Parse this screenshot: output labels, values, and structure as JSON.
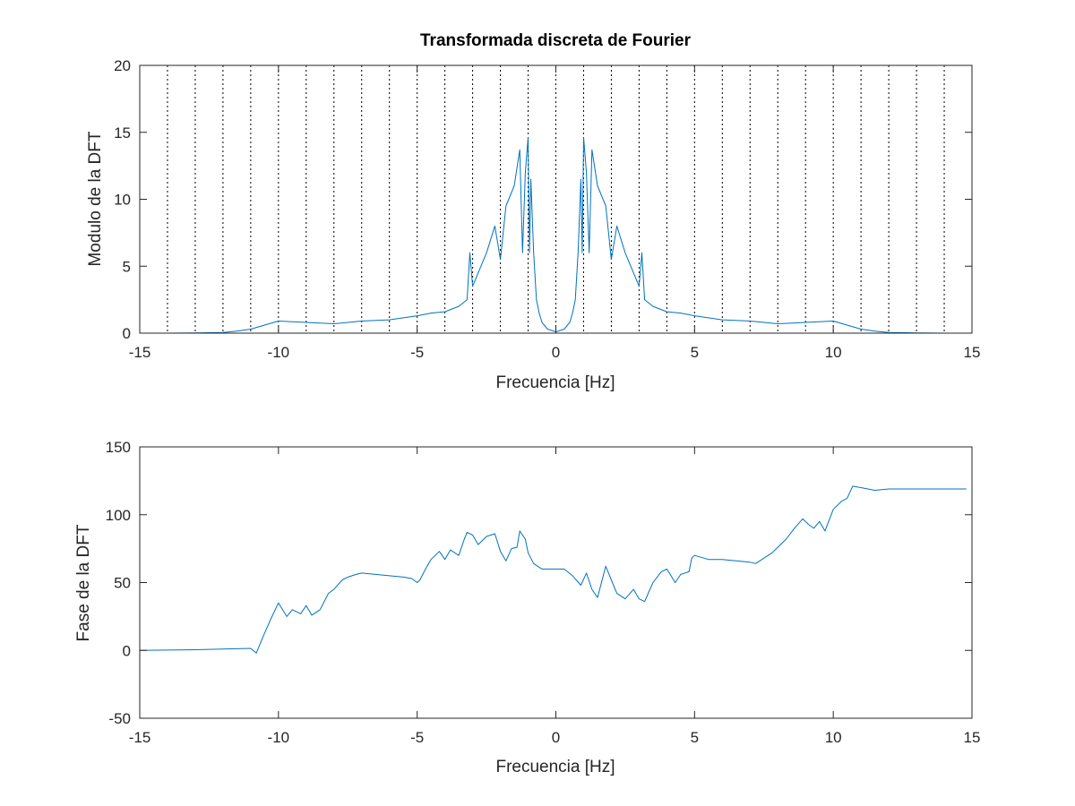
{
  "chart_data": [
    {
      "type": "line",
      "title": "Transformada discreta de Fourier",
      "xlabel": "Frecuencia [Hz]",
      "ylabel": "Modulo de la DFT",
      "xlim": [
        -15,
        15
      ],
      "ylim": [
        0,
        20
      ],
      "xticks": [
        -15,
        -10,
        -5,
        0,
        5,
        10,
        15
      ],
      "yticks": [
        0,
        5,
        10,
        15,
        20
      ],
      "x_gridlines": [
        -14,
        -13,
        -12,
        -11,
        -10,
        -9,
        -8,
        -7,
        -6,
        -5,
        -4,
        -3,
        -2,
        -1,
        0,
        1,
        2,
        3,
        4,
        5,
        6,
        7,
        8,
        9,
        10,
        11,
        12,
        13,
        14
      ],
      "grid_style": "dotted vertical",
      "color": "#0072bd",
      "series": [
        {
          "x": [
            -15,
            -14,
            -13,
            -12,
            -11.5,
            -11,
            -10.5,
            -10,
            -9,
            -8,
            -7,
            -6,
            -5,
            -4.5,
            -4,
            -3.5,
            -3.2,
            -3.1,
            -3.0,
            -2.8,
            -2.5,
            -2.2,
            -2.0,
            -1.8,
            -1.5,
            -1.3,
            -1.2,
            -1.1,
            -1.0,
            -0.95,
            -0.9,
            -0.8,
            -0.7,
            -0.6,
            -0.5,
            -0.3,
            0,
            0.3,
            0.5,
            0.6,
            0.7,
            0.8,
            0.9,
            0.95,
            1.0,
            1.1,
            1.2,
            1.3,
            1.5,
            1.8,
            2.0,
            2.2,
            2.5,
            2.8,
            3.0,
            3.1,
            3.2,
            3.5,
            4,
            4.5,
            5,
            6,
            7,
            8,
            9,
            10,
            10.5,
            11,
            11.5,
            12,
            13,
            14,
            14.8
          ],
          "y": [
            0,
            0,
            0.02,
            0.05,
            0.15,
            0.3,
            0.6,
            0.9,
            0.8,
            0.7,
            0.9,
            1.0,
            1.3,
            1.5,
            1.6,
            2.0,
            2.5,
            6.0,
            3.5,
            4.5,
            6.0,
            8.0,
            5.5,
            9.5,
            11.0,
            13.7,
            6.0,
            12.0,
            14.6,
            6.0,
            11.5,
            6.0,
            2.5,
            1.5,
            0.8,
            0.3,
            0.1,
            0.3,
            0.8,
            1.5,
            2.5,
            6.0,
            11.5,
            6.0,
            14.6,
            12.0,
            6.0,
            13.7,
            11.0,
            9.5,
            5.5,
            8.0,
            6.0,
            4.5,
            3.5,
            6.0,
            2.5,
            2.0,
            1.6,
            1.5,
            1.3,
            1.0,
            0.9,
            0.7,
            0.8,
            0.9,
            0.6,
            0.3,
            0.15,
            0.05,
            0.02,
            0,
            0
          ]
        }
      ]
    },
    {
      "type": "line",
      "title": "",
      "xlabel": "Frecuencia [Hz]",
      "ylabel": "Fase de la DFT",
      "xlim": [
        -15,
        15
      ],
      "ylim": [
        -50,
        150
      ],
      "xticks": [
        -15,
        -10,
        -5,
        0,
        5,
        10,
        15
      ],
      "yticks": [
        -50,
        0,
        50,
        100,
        150
      ],
      "color": "#0072bd",
      "series": [
        {
          "x": [
            -15,
            -13,
            -12,
            -11,
            -10.8,
            -10.6,
            -10.3,
            -10.0,
            -9.7,
            -9.5,
            -9.2,
            -9.0,
            -8.8,
            -8.5,
            -8.2,
            -8.0,
            -7.7,
            -7.5,
            -7.2,
            -7.0,
            -6.5,
            -6.0,
            -5.5,
            -5.2,
            -5.0,
            -4.9,
            -4.7,
            -4.5,
            -4.2,
            -4.0,
            -3.8,
            -3.5,
            -3.3,
            -3.2,
            -3.0,
            -2.8,
            -2.5,
            -2.2,
            -2.0,
            -1.8,
            -1.6,
            -1.4,
            -1.3,
            -1.1,
            -1.0,
            -0.8,
            -0.5,
            -0.2,
            0,
            0.3,
            0.6,
            0.9,
            1.1,
            1.3,
            1.5,
            1.8,
            2.0,
            2.2,
            2.5,
            2.8,
            3.0,
            3.2,
            3.5,
            3.8,
            4.0,
            4.3,
            4.5,
            4.8,
            4.9,
            5.0,
            5.5,
            6.0,
            6.5,
            7.0,
            7.2,
            7.5,
            7.8,
            8.0,
            8.3,
            8.6,
            8.9,
            9.1,
            9.3,
            9.5,
            9.7,
            10.0,
            10.3,
            10.5,
            10.7,
            11.0,
            11.5,
            12.0,
            13.0,
            14.0,
            14.8
          ],
          "y": [
            0,
            0.5,
            1,
            1.5,
            -2,
            8,
            22,
            35,
            25,
            30,
            27,
            33,
            26,
            30,
            42,
            45,
            52,
            54,
            56,
            57,
            56,
            55,
            54,
            53,
            50,
            52,
            60,
            67,
            73,
            67,
            74,
            70,
            82,
            87,
            85,
            78,
            84,
            86,
            73,
            66,
            75,
            76,
            88,
            82,
            72,
            64,
            60,
            60,
            60,
            60,
            55,
            48,
            57,
            45,
            39,
            62,
            52,
            42,
            38,
            45,
            38,
            36,
            50,
            58,
            60,
            50,
            56,
            58,
            68,
            70,
            67,
            67,
            66,
            65,
            64,
            68,
            72,
            76,
            82,
            90,
            97,
            93,
            90,
            95,
            88,
            104,
            110,
            112,
            121,
            120,
            118,
            119,
            119,
            119,
            119
          ]
        }
      ]
    }
  ]
}
